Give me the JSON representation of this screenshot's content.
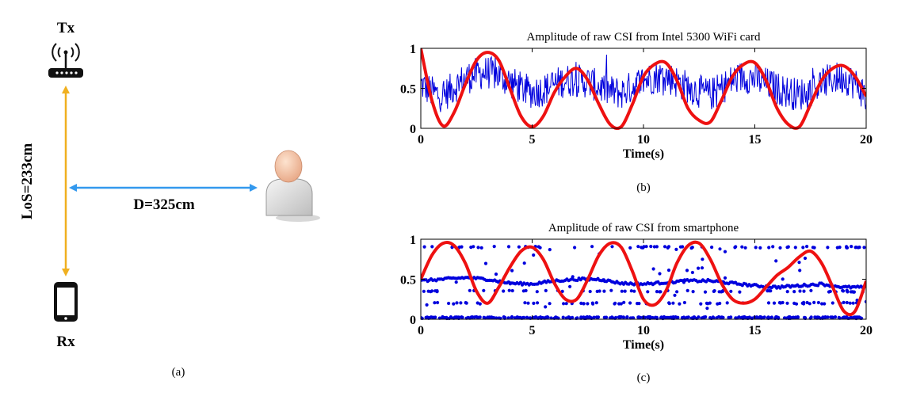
{
  "scene": {
    "tx_label": "Tx",
    "rx_label": "Rx",
    "los_label": "LoS=233cm",
    "distance_label": "D=325cm",
    "caption": "(a)",
    "icons": [
      "router-icon",
      "smartphone-icon",
      "person-icon"
    ],
    "colors": {
      "los_arrow": "#f0b020",
      "distance_arrow": "#3399ee"
    }
  },
  "chart_data": [
    {
      "type": "line",
      "title": "Amplitude of raw CSI from Intel 5300 WiFi card",
      "xlabel": "Time(s)",
      "ylabel": "",
      "caption": "(b)",
      "xlim": [
        0,
        20
      ],
      "ylim": [
        0,
        1
      ],
      "x_ticks": [
        0,
        5,
        10,
        15,
        20
      ],
      "y_ticks": [
        0,
        0.5,
        1
      ],
      "y_tick_labels": [
        "0",
        "0.5",
        "1"
      ],
      "grid": false,
      "legend": "none",
      "series": [
        {
          "style": "noisy-line",
          "color": "#0000dd",
          "x": [
            0,
            0.5,
            1,
            1.5,
            2,
            2.5,
            3,
            3.5,
            4,
            4.5,
            5,
            5.5,
            6,
            6.5,
            7,
            7.5,
            8,
            8.5,
            9,
            9.5,
            10,
            10.5,
            11,
            11.5,
            12,
            12.5,
            13,
            13.5,
            14,
            14.5,
            15,
            15.5,
            16,
            16.5,
            17,
            17.5,
            18,
            18.5,
            19,
            19.5,
            20
          ],
          "y": [
            0.55,
            0.45,
            0.4,
            0.52,
            0.62,
            0.68,
            0.7,
            0.66,
            0.58,
            0.5,
            0.45,
            0.48,
            0.55,
            0.6,
            0.6,
            0.58,
            0.52,
            0.46,
            0.44,
            0.52,
            0.6,
            0.64,
            0.65,
            0.58,
            0.52,
            0.46,
            0.42,
            0.5,
            0.6,
            0.65,
            0.62,
            0.56,
            0.5,
            0.45,
            0.42,
            0.48,
            0.56,
            0.62,
            0.64,
            0.56,
            0.4
          ]
        },
        {
          "style": "smooth-line",
          "color": "#ee1111",
          "x": [
            0,
            0.5,
            1,
            1.5,
            2,
            2.5,
            3,
            3.5,
            4,
            4.5,
            5,
            5.5,
            6,
            6.5,
            7,
            7.5,
            8,
            8.5,
            9,
            9.5,
            10,
            10.5,
            11,
            11.5,
            12,
            12.5,
            13,
            13.5,
            14,
            14.5,
            15,
            15.5,
            16,
            16.5,
            17,
            17.5,
            18,
            18.5,
            19,
            19.5,
            20
          ],
          "y": [
            1.0,
            0.35,
            0.03,
            0.2,
            0.55,
            0.85,
            0.95,
            0.85,
            0.5,
            0.15,
            0.02,
            0.15,
            0.45,
            0.65,
            0.75,
            0.6,
            0.3,
            0.05,
            0.02,
            0.3,
            0.65,
            0.8,
            0.82,
            0.6,
            0.25,
            0.1,
            0.08,
            0.35,
            0.65,
            0.8,
            0.82,
            0.6,
            0.25,
            0.05,
            0.02,
            0.3,
            0.6,
            0.75,
            0.78,
            0.65,
            0.4
          ]
        }
      ]
    },
    {
      "type": "scatter",
      "title": "Amplitude of raw CSI from smartphone",
      "xlabel": "Time(s)",
      "ylabel": "",
      "caption": "(c)",
      "xlim": [
        0,
        20
      ],
      "ylim": [
        0,
        1
      ],
      "x_ticks": [
        0,
        5,
        10,
        15,
        20
      ],
      "y_ticks": [
        0,
        0.5,
        1
      ],
      "y_tick_labels": [
        "0",
        "0.5",
        "1"
      ],
      "grid": false,
      "legend": "none",
      "series": [
        {
          "style": "dots",
          "color": "#0000dd",
          "bands": [
            {
              "level": 0.02,
              "density": "dense"
            },
            {
              "level": 0.9,
              "density": "sparse"
            },
            {
              "level": 0.2,
              "density": "sparse"
            },
            {
              "level": 0.35,
              "density": "sparse"
            }
          ],
          "band_line": {
            "x": [
              0,
              1,
              2,
              3,
              4,
              5,
              6,
              7,
              8,
              9,
              10,
              11,
              12,
              13,
              14,
              15,
              16,
              17,
              18,
              19,
              20
            ],
            "y": [
              0.48,
              0.5,
              0.52,
              0.5,
              0.45,
              0.44,
              0.48,
              0.5,
              0.5,
              0.45,
              0.44,
              0.46,
              0.48,
              0.48,
              0.45,
              0.42,
              0.4,
              0.42,
              0.44,
              0.4,
              0.4
            ]
          }
        },
        {
          "style": "smooth-line",
          "color": "#ee1111",
          "x": [
            0,
            0.5,
            1,
            1.5,
            2,
            2.5,
            3,
            3.5,
            4,
            4.5,
            5,
            5.5,
            6,
            6.5,
            7,
            7.5,
            8,
            8.5,
            9,
            9.5,
            10,
            10.5,
            11,
            11.5,
            12,
            12.5,
            13,
            13.5,
            14,
            14.5,
            15,
            15.5,
            16,
            16.5,
            17,
            17.5,
            18,
            18.5,
            19,
            19.5,
            20
          ],
          "y": [
            0.5,
            0.8,
            0.95,
            0.92,
            0.7,
            0.35,
            0.2,
            0.4,
            0.65,
            0.85,
            0.9,
            0.75,
            0.45,
            0.25,
            0.25,
            0.5,
            0.8,
            0.95,
            0.9,
            0.6,
            0.25,
            0.18,
            0.35,
            0.7,
            0.92,
            0.95,
            0.75,
            0.45,
            0.25,
            0.2,
            0.25,
            0.4,
            0.55,
            0.65,
            0.78,
            0.85,
            0.7,
            0.4,
            0.1,
            0.1,
            0.48
          ]
        }
      ]
    }
  ]
}
